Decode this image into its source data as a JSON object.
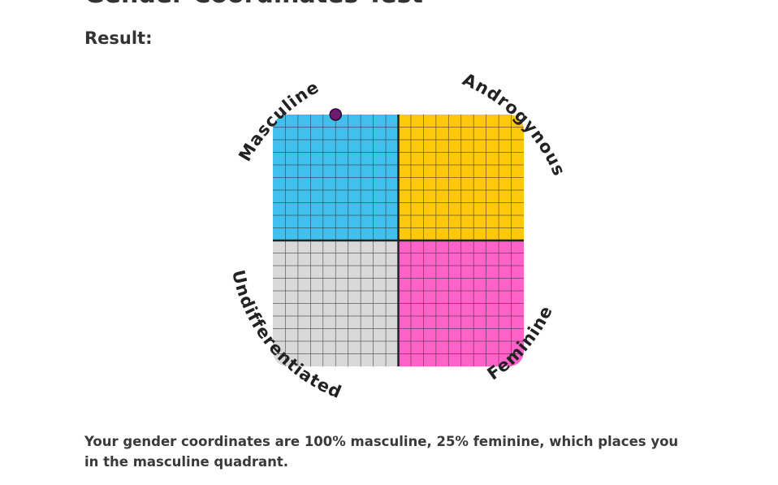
{
  "page": {
    "title": "Gender Coordinates Test",
    "result_heading": "Result:",
    "result_text": "Your gender coordinates are 100% masculine, 25% feminine, which places you in the masculine quadrant."
  },
  "chart_data": {
    "type": "scatter",
    "x_axis": "feminine",
    "y_axis": "masculine",
    "xlim": [
      0,
      100
    ],
    "ylim": [
      0,
      100
    ],
    "grid": true,
    "points": [
      {
        "x": 25,
        "y": 100
      }
    ],
    "quadrants": [
      {
        "label": "Masculine",
        "position": "top-left",
        "color": "#41c0ee"
      },
      {
        "label": "Androgynous",
        "position": "top-right",
        "color": "#ffc80b"
      },
      {
        "label": "Undifferentiated",
        "position": "bottom-left",
        "color": "#d9d9d9"
      },
      {
        "label": "Feminine",
        "position": "bottom-right",
        "color": "#ff62c8"
      }
    ],
    "marker_color": "#6e1a6e"
  }
}
